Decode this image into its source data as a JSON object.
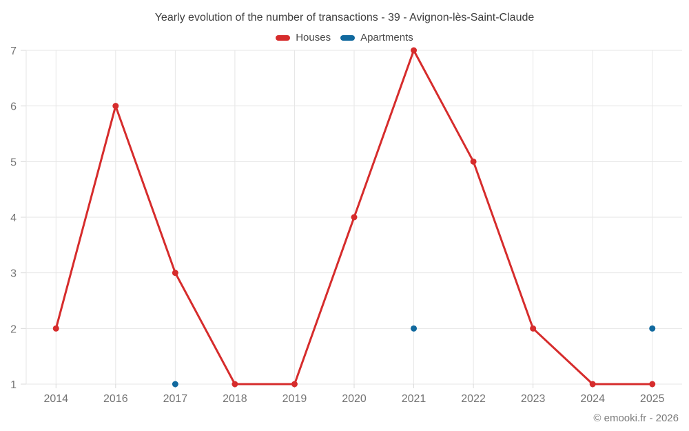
{
  "header": {
    "title": "Yearly evolution of the number of transactions - 39 - Avignon-lès-Saint-Claude"
  },
  "legend": {
    "items": [
      {
        "label": "Houses",
        "color": "#d62c2c"
      },
      {
        "label": "Apartments",
        "color": "#11699e"
      }
    ]
  },
  "footer": {
    "credit": "© emooki.fr - 2026"
  },
  "colors": {
    "grid": "#e6e6e6",
    "tick": "#d9d9d9",
    "axis_label": "#757575",
    "title_text": "#3f3f3f"
  },
  "chart_data": {
    "type": "line",
    "title": "Yearly evolution of the number of transactions - 39 - Avignon-lès-Saint-Claude",
    "categories": [
      "2014",
      "2016",
      "2017",
      "2018",
      "2019",
      "2020",
      "2021",
      "2022",
      "2023",
      "2024",
      "2025"
    ],
    "series": [
      {
        "name": "Houses",
        "color": "#d62c2c",
        "values": [
          2,
          6,
          3,
          1,
          1,
          4,
          7,
          5,
          2,
          1,
          1
        ]
      },
      {
        "name": "Apartments",
        "color": "#11699e",
        "values": [
          null,
          null,
          1,
          null,
          null,
          null,
          2,
          null,
          null,
          null,
          2
        ]
      }
    ],
    "xlabel": "",
    "ylabel": "",
    "ylim": [
      1,
      7
    ],
    "yticks": [
      1,
      2,
      3,
      4,
      5,
      6,
      7
    ],
    "grid": true,
    "legend_position": "top"
  }
}
